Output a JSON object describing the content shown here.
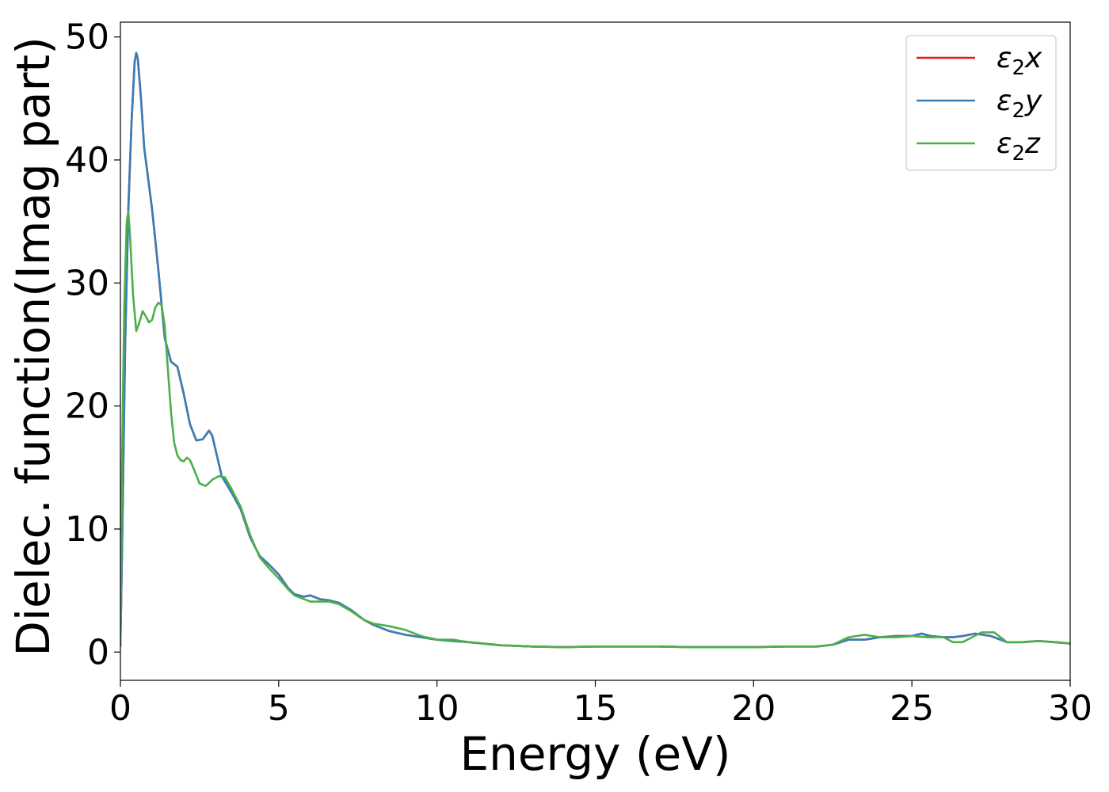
{
  "chart_data": {
    "type": "line",
    "title": "",
    "xlabel": "Energy (eV)",
    "ylabel": "Dielec. function(Imag part)",
    "xlim": [
      0,
      30
    ],
    "ylim": [
      -2.3,
      51.2
    ],
    "xticks": [
      0,
      5,
      10,
      15,
      20,
      25,
      30
    ],
    "yticks": [
      0,
      10,
      20,
      30,
      40,
      50
    ],
    "grid": false,
    "legend_position": "top-right",
    "series": [
      {
        "name": "ε₂x",
        "legend_main": "ε",
        "legend_sub": "2",
        "legend_suffix": "x",
        "color": "#e41a1c",
        "x": [
          0,
          0.05,
          0.15,
          0.25,
          0.35,
          0.45,
          0.5,
          0.55,
          0.65,
          0.75,
          0.9,
          1.0,
          1.2,
          1.4,
          1.6,
          1.8,
          2.0,
          2.2,
          2.4,
          2.6,
          2.8,
          2.9,
          3.0,
          3.2,
          3.5,
          3.8,
          4.1,
          4.4,
          4.7,
          5.0,
          5.3,
          5.5,
          5.8,
          6.0,
          6.3,
          6.6,
          6.9,
          7.3,
          7.7,
          8.0,
          8.5,
          9.0,
          9.5,
          10.0,
          10.5,
          11.0,
          12.0,
          13.0,
          14.0,
          15.0,
          16.0,
          17.0,
          18.0,
          19.0,
          20.0,
          21.0,
          22.0,
          22.5,
          23.0,
          23.5,
          24.0,
          24.5,
          25.0,
          25.3,
          25.6,
          26.0,
          26.3,
          26.6,
          27.0,
          27.5,
          28.0,
          28.5,
          29.0,
          29.5,
          30.0
        ],
        "y": [
          0.5,
          8,
          25,
          36,
          43,
          48,
          48.7,
          48.2,
          45,
          41,
          38,
          36,
          31,
          25.5,
          23.6,
          23.2,
          21,
          18.5,
          17.2,
          17.3,
          18,
          17.6,
          16.5,
          14.3,
          13,
          11.6,
          9.3,
          7.8,
          7.1,
          6.3,
          5.2,
          4.7,
          4.5,
          4.6,
          4.3,
          4.2,
          4.0,
          3.4,
          2.6,
          2.2,
          1.7,
          1.4,
          1.2,
          1.0,
          0.9,
          0.8,
          0.55,
          0.45,
          0.4,
          0.45,
          0.45,
          0.45,
          0.4,
          0.4,
          0.4,
          0.45,
          0.45,
          0.6,
          1.0,
          1.0,
          1.2,
          1.3,
          1.3,
          1.5,
          1.3,
          1.2,
          1.2,
          1.3,
          1.5,
          1.3,
          0.8,
          0.8,
          0.9,
          0.8,
          0.7
        ]
      },
      {
        "name": "ε₂y",
        "legend_main": "ε",
        "legend_sub": "2",
        "legend_suffix": "y",
        "color": "#377eb8",
        "x": [
          0,
          0.05,
          0.15,
          0.25,
          0.35,
          0.45,
          0.5,
          0.55,
          0.65,
          0.75,
          0.9,
          1.0,
          1.2,
          1.4,
          1.6,
          1.8,
          2.0,
          2.2,
          2.4,
          2.6,
          2.8,
          2.9,
          3.0,
          3.2,
          3.5,
          3.8,
          4.1,
          4.4,
          4.7,
          5.0,
          5.3,
          5.5,
          5.8,
          6.0,
          6.3,
          6.6,
          6.9,
          7.3,
          7.7,
          8.0,
          8.5,
          9.0,
          9.5,
          10.0,
          10.5,
          11.0,
          12.0,
          13.0,
          14.0,
          15.0,
          16.0,
          17.0,
          18.0,
          19.0,
          20.0,
          21.0,
          22.0,
          22.5,
          23.0,
          23.5,
          24.0,
          24.5,
          25.0,
          25.3,
          25.6,
          26.0,
          26.3,
          26.6,
          27.0,
          27.5,
          28.0,
          28.5,
          29.0,
          29.5,
          30.0
        ],
        "y": [
          0.5,
          8,
          25,
          36,
          43,
          48,
          48.7,
          48.2,
          45,
          41,
          38,
          36,
          31,
          25.5,
          23.6,
          23.2,
          21,
          18.5,
          17.2,
          17.3,
          18,
          17.6,
          16.5,
          14.3,
          13,
          11.6,
          9.3,
          7.8,
          7.1,
          6.3,
          5.2,
          4.7,
          4.5,
          4.6,
          4.3,
          4.2,
          4.0,
          3.4,
          2.6,
          2.2,
          1.7,
          1.4,
          1.2,
          1.0,
          0.9,
          0.8,
          0.55,
          0.45,
          0.4,
          0.45,
          0.45,
          0.45,
          0.4,
          0.4,
          0.4,
          0.45,
          0.45,
          0.6,
          1.0,
          1.0,
          1.2,
          1.3,
          1.3,
          1.5,
          1.3,
          1.2,
          1.2,
          1.3,
          1.5,
          1.3,
          0.8,
          0.8,
          0.9,
          0.8,
          0.7
        ]
      },
      {
        "name": "ε₂z",
        "legend_main": "ε",
        "legend_sub": "2",
        "legend_suffix": "z",
        "color": "#4daf4a",
        "x": [
          0,
          0.05,
          0.12,
          0.2,
          0.25,
          0.3,
          0.4,
          0.5,
          0.6,
          0.7,
          0.8,
          0.9,
          1.0,
          1.1,
          1.2,
          1.3,
          1.4,
          1.5,
          1.6,
          1.7,
          1.8,
          1.9,
          2.0,
          2.1,
          2.2,
          2.3,
          2.5,
          2.7,
          2.9,
          3.1,
          3.3,
          3.5,
          3.8,
          4.1,
          4.4,
          4.7,
          5.0,
          5.3,
          5.5,
          5.8,
          6.0,
          6.3,
          6.6,
          6.9,
          7.3,
          7.7,
          8.0,
          8.5,
          9.0,
          9.5,
          10.0,
          10.5,
          11.0,
          12.0,
          13.0,
          14.0,
          15.0,
          16.0,
          17.0,
          18.0,
          19.0,
          20.0,
          21.0,
          22.0,
          22.5,
          23.0,
          23.5,
          24.0,
          24.5,
          25.0,
          25.5,
          26.0,
          26.3,
          26.6,
          26.9,
          27.2,
          27.6,
          28.0,
          28.5,
          29.0,
          29.5,
          30.0
        ],
        "y": [
          0.5,
          15,
          28,
          35,
          35.8,
          34,
          29,
          26.1,
          26.8,
          27.7,
          27.3,
          26.8,
          27.0,
          28.0,
          28.4,
          28.2,
          26.5,
          23,
          19.5,
          17,
          16,
          15.6,
          15.5,
          15.8,
          15.6,
          15.0,
          13.7,
          13.5,
          14.0,
          14.3,
          14.2,
          13.3,
          11.8,
          9.5,
          7.7,
          6.8,
          6.0,
          5.1,
          4.6,
          4.3,
          4.1,
          4.1,
          4.1,
          3.9,
          3.3,
          2.6,
          2.3,
          2.1,
          1.8,
          1.3,
          1.0,
          1.0,
          0.8,
          0.55,
          0.45,
          0.4,
          0.45,
          0.45,
          0.45,
          0.4,
          0.4,
          0.4,
          0.45,
          0.45,
          0.6,
          1.2,
          1.4,
          1.2,
          1.2,
          1.3,
          1.2,
          1.2,
          0.8,
          0.8,
          1.2,
          1.6,
          1.6,
          0.8,
          0.8,
          0.9,
          0.8,
          0.7
        ]
      }
    ]
  }
}
